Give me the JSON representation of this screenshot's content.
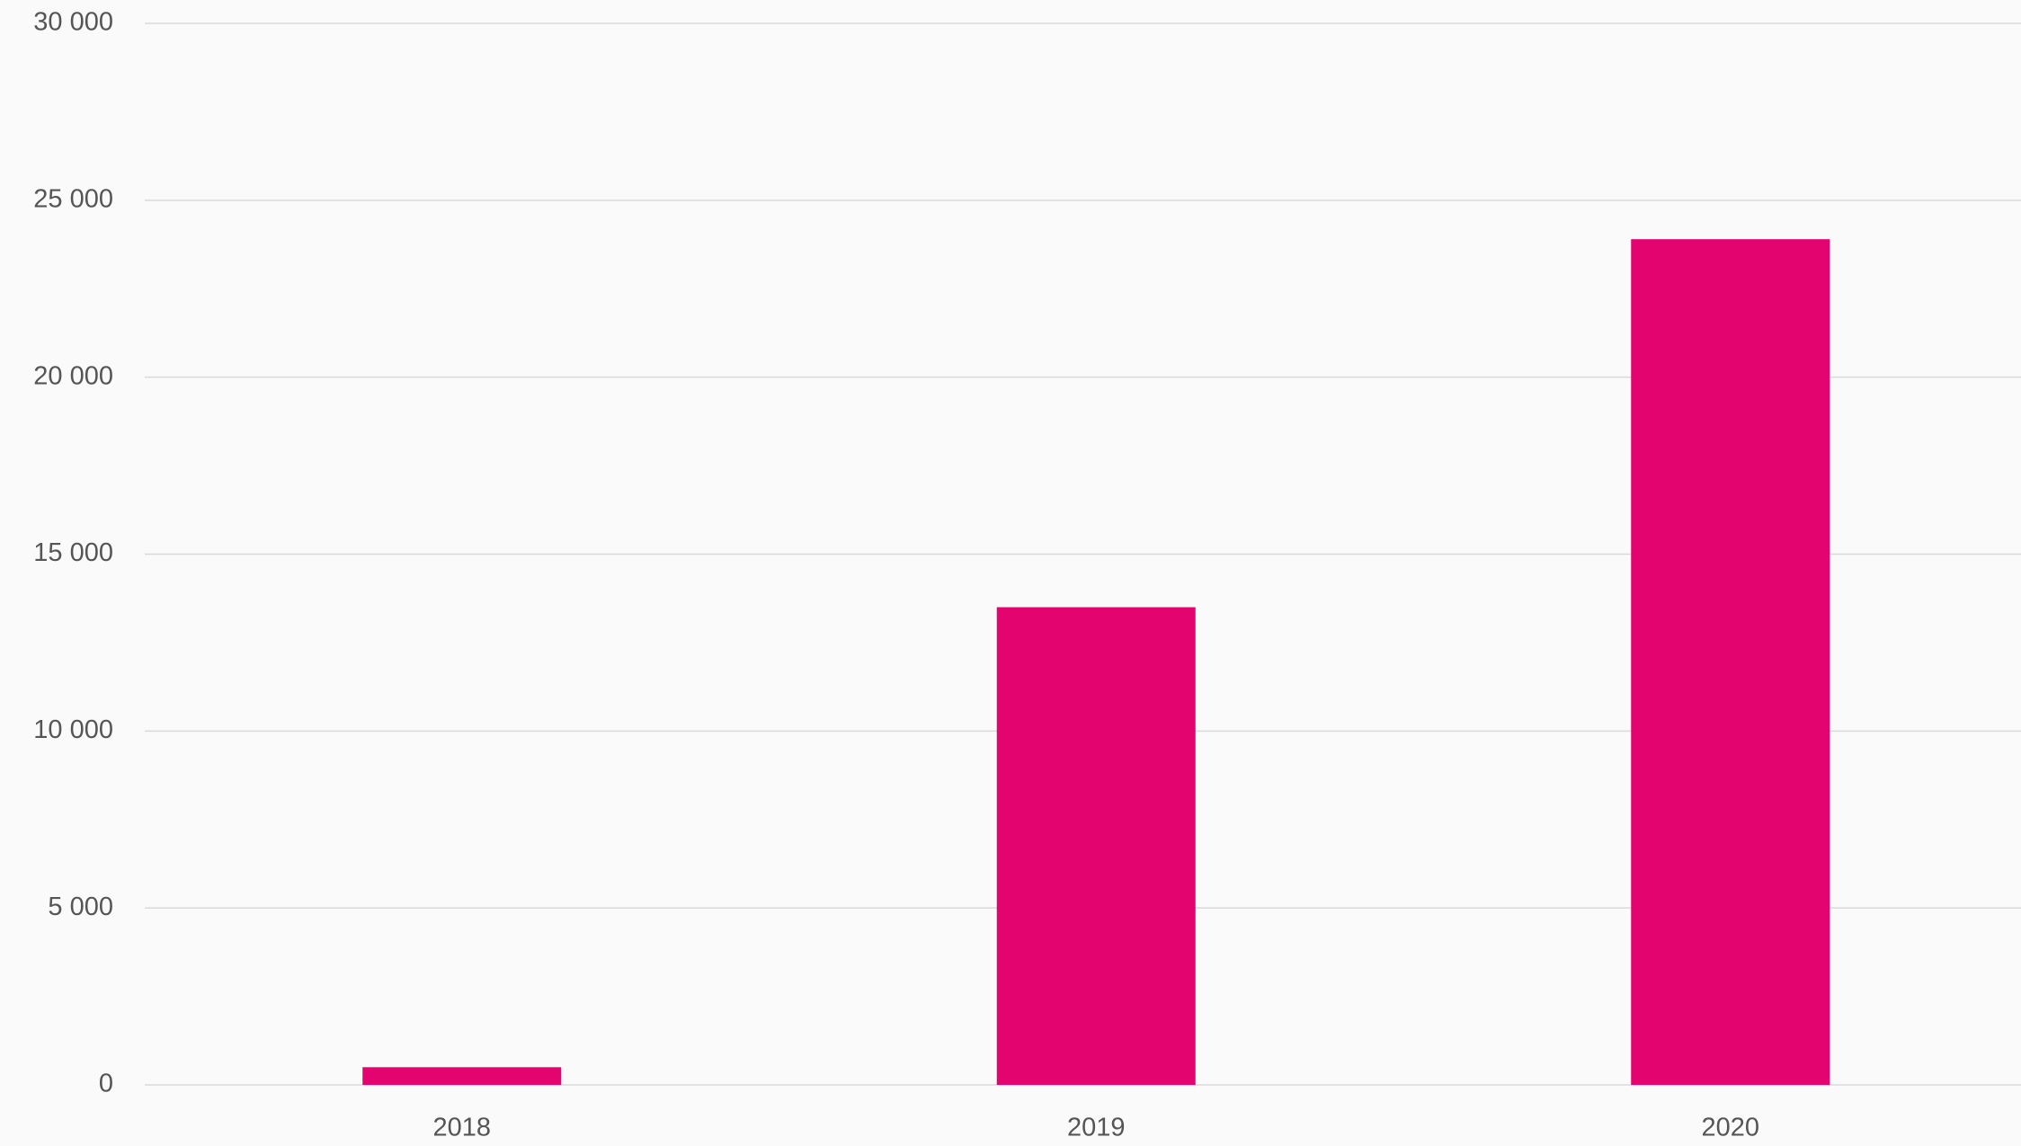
{
  "chart_data": {
    "type": "bar",
    "categories": [
      "2018",
      "2019",
      "2020"
    ],
    "values": [
      500,
      13500,
      23900
    ],
    "color": "#e3046f",
    "ylim": [
      0,
      30000
    ],
    "yticks": [
      0,
      {
        "value": 5000,
        "label": "5 000"
      },
      {
        "value": 10000,
        "label": "10 000"
      },
      {
        "value": 15000,
        "label": "15 000"
      },
      {
        "value": 20000,
        "label": "20 000"
      },
      {
        "value": 25000,
        "label": "25 000"
      },
      {
        "value": 30000,
        "label": "30 000"
      }
    ],
    "grid": true
  }
}
